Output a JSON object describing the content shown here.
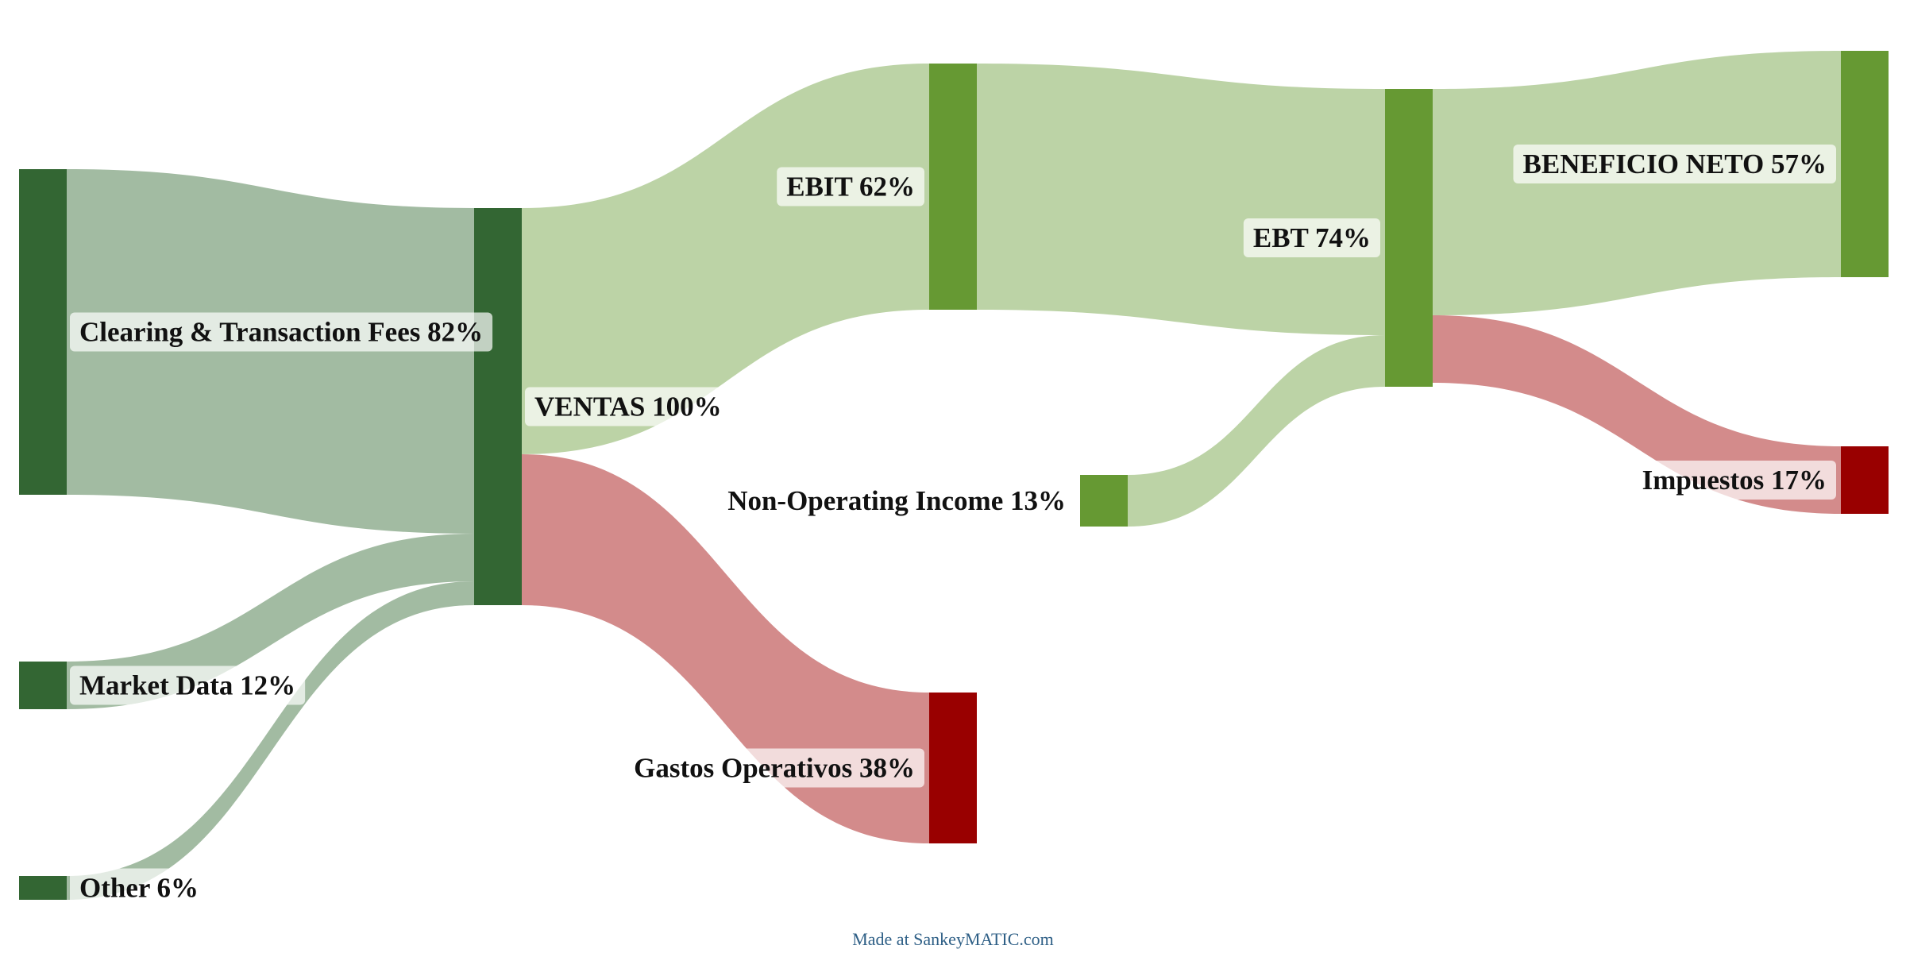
{
  "colors": {
    "source_node": "#336633",
    "profit_node": "#669933",
    "cost_node": "#990000",
    "source_flow": "#a2bba2",
    "profit_flow": "#bcd3a6",
    "cost_flow": "#d38b8b"
  },
  "nodes": [
    {
      "id": "clearing",
      "name": "Clearing & Transaction Fees",
      "pct": "82%",
      "kind": "source"
    },
    {
      "id": "market",
      "name": "Market Data",
      "pct": "12%",
      "kind": "source"
    },
    {
      "id": "other",
      "name": "Other",
      "pct": "6%",
      "kind": "source"
    },
    {
      "id": "ventas",
      "name": "VENTAS",
      "pct": "100%",
      "kind": "source"
    },
    {
      "id": "ebit",
      "name": "EBIT",
      "pct": "62%",
      "kind": "profit"
    },
    {
      "id": "gastos",
      "name": "Gastos Operativos",
      "pct": "38%",
      "kind": "cost"
    },
    {
      "id": "nonop",
      "name": "Non-Operating Income",
      "pct": "13%",
      "kind": "profit"
    },
    {
      "id": "ebt",
      "name": "EBT",
      "pct": "74%",
      "kind": "profit"
    },
    {
      "id": "neto",
      "name": "BENEFICIO NETO",
      "pct": "57%",
      "kind": "profit"
    },
    {
      "id": "impuestos",
      "name": "Impuestos",
      "pct": "17%",
      "kind": "cost"
    }
  ],
  "flows": [
    {
      "from": "clearing",
      "to": "ventas",
      "pct": 82,
      "kind": "source"
    },
    {
      "from": "market",
      "to": "ventas",
      "pct": 12,
      "kind": "source"
    },
    {
      "from": "other",
      "to": "ventas",
      "pct": 6,
      "kind": "source"
    },
    {
      "from": "ventas",
      "to": "ebit",
      "pct": 62,
      "kind": "profit"
    },
    {
      "from": "ventas",
      "to": "gastos",
      "pct": 38,
      "kind": "cost"
    },
    {
      "from": "ebit",
      "to": "ebt",
      "pct": 62,
      "kind": "profit"
    },
    {
      "from": "nonop",
      "to": "ebt",
      "pct": 13,
      "kind": "profit"
    },
    {
      "from": "ebt",
      "to": "neto",
      "pct": 57,
      "kind": "profit"
    },
    {
      "from": "ebt",
      "to": "impuestos",
      "pct": 17,
      "kind": "cost"
    }
  ],
  "credit": "Made at SankeyMATIC.com"
}
